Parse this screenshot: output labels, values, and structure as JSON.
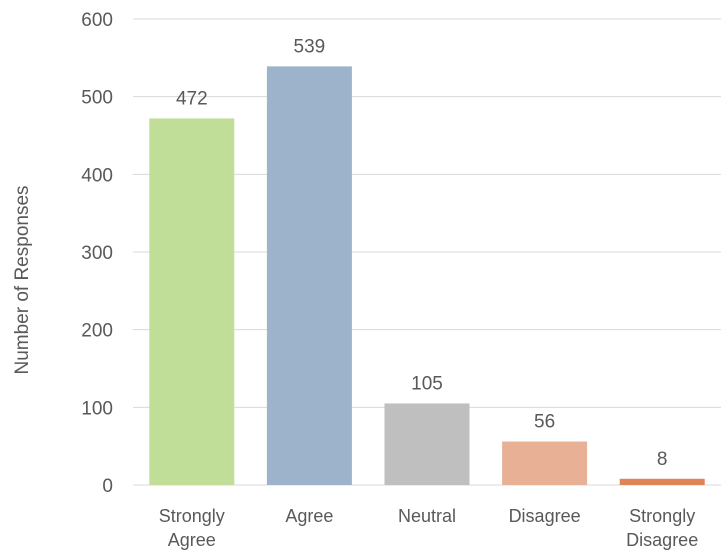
{
  "chart_data": {
    "type": "bar",
    "categories": [
      [
        "Strongly",
        "Agree"
      ],
      [
        "Agree"
      ],
      [
        "Neutral"
      ],
      [
        "Disagree"
      ],
      [
        "Strongly",
        "Disagree"
      ]
    ],
    "values": [
      472,
      539,
      105,
      56,
      8
    ],
    "data_labels": [
      "472",
      "539",
      "105",
      "56",
      "8"
    ],
    "colors": [
      "#c0de97",
      "#9db3cb",
      "#bfbfbf",
      "#e8b196",
      "#df8457"
    ],
    "title": "",
    "xlabel": "",
    "ylabel": "Number of Responses",
    "ylim": [
      0,
      600
    ],
    "yticks": [
      0,
      100,
      200,
      300,
      400,
      500,
      600
    ],
    "grid": true,
    "legend": "none"
  }
}
